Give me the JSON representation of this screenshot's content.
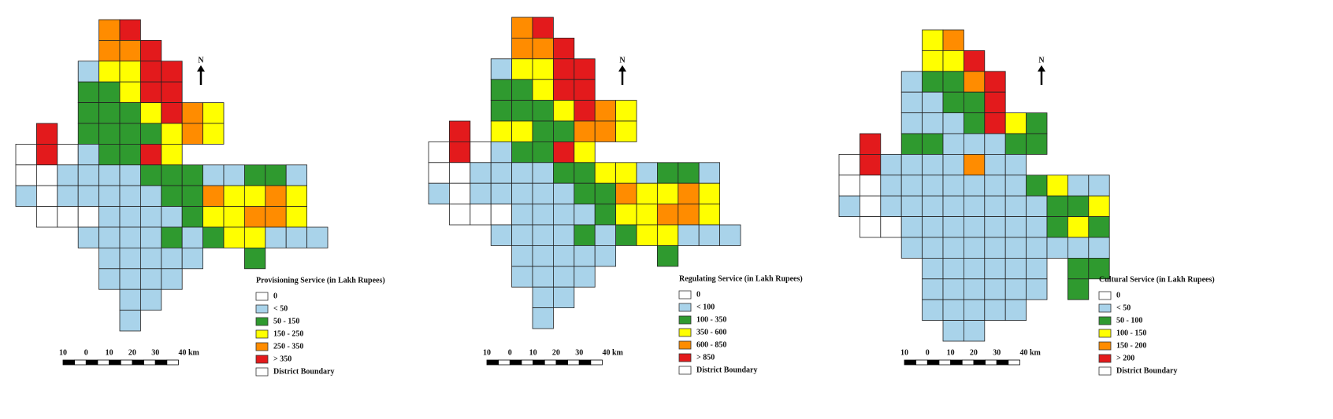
{
  "maps": [
    {
      "legend_title": "Provisioning Service (in Lakh Rupees)",
      "legend_items": [
        "0",
        "< 50",
        "50 - 150",
        "150 - 250",
        "250 - 350",
        "> 350",
        "District Boundary"
      ],
      "north": "N",
      "scale_labels": [
        "10",
        "0",
        "10",
        "20",
        "30",
        "40 km"
      ]
    },
    {
      "legend_title": "Regulating Service (in Lakh Rupees)",
      "legend_items": [
        "0",
        "< 100",
        "100 - 350",
        "350 - 600",
        "600 - 850",
        "> 850",
        "District Boundary"
      ],
      "north": "N",
      "scale_labels": [
        "10",
        "0",
        "10",
        "20",
        "30",
        "40 km"
      ]
    },
    {
      "legend_title": "Cultural Service (in Lakh Rupees)",
      "legend_items": [
        "0",
        "< 50",
        "50 - 100",
        "100 - 150",
        "150 - 200",
        "> 200",
        "District Boundary"
      ],
      "north": "N",
      "scale_labels": [
        "10",
        "0",
        "10",
        "20",
        "30",
        "40 km"
      ]
    }
  ]
}
